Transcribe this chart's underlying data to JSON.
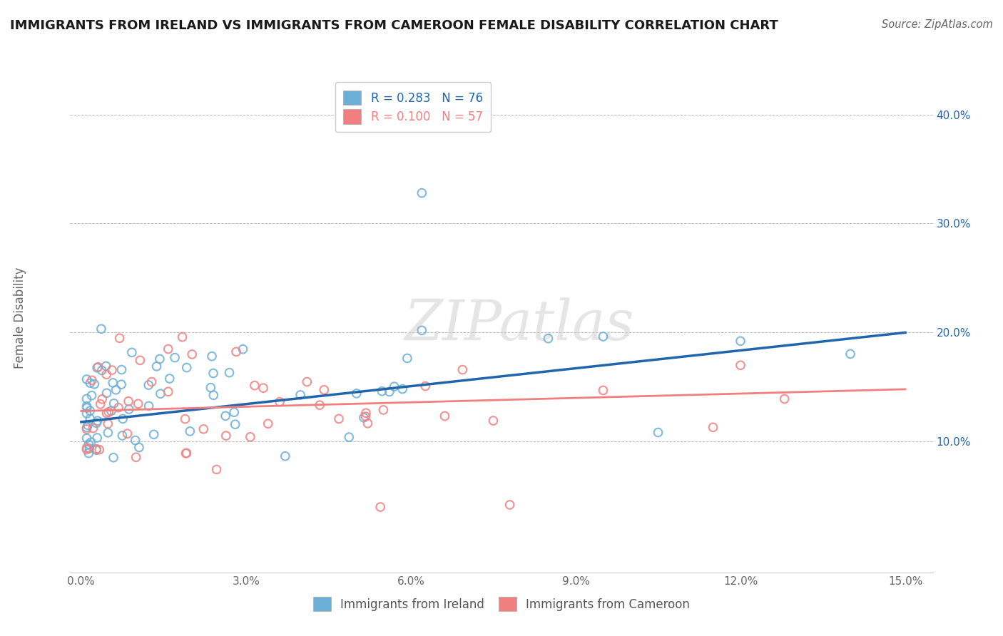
{
  "title": "IMMIGRANTS FROM IRELAND VS IMMIGRANTS FROM CAMEROON FEMALE DISABILITY CORRELATION CHART",
  "source": "Source: ZipAtlas.com",
  "ylabel": "Female Disability",
  "ireland_color": "#6baed6",
  "cameroon_color": "#f08080",
  "ireland_line_color": "#2166ac",
  "cameroon_line_color": "#d6604d",
  "ireland_R": 0.283,
  "ireland_N": 76,
  "cameroon_R": 0.1,
  "cameroon_N": 57,
  "background_color": "#ffffff",
  "grid_color": "#bbbbbb",
  "watermark": "ZIPatlas"
}
